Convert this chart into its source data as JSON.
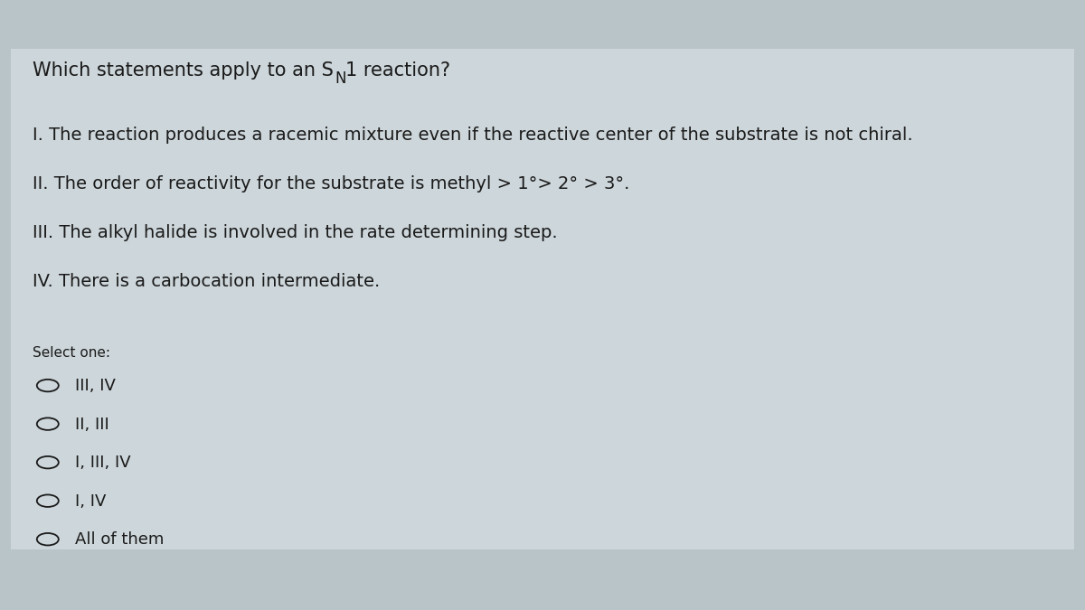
{
  "background_color": "#b8c4c8",
  "card_color": "#cdd6da",
  "text_color": "#1a1a1a",
  "font_size_title": 15,
  "font_size_statements": 14,
  "font_size_select": 11,
  "font_size_options": 13,
  "title_part1": "Which statements apply to an S",
  "title_sub": "N",
  "title_part2": "1 reaction?",
  "statements": [
    "I. The reaction produces a racemic mixture even if the reactive center of the substrate is not chiral.",
    "II. The order of reactivity for the substrate is methyl > 1°> 2° > 3°.",
    "III. The alkyl halide is involved in the rate determining step.",
    "IV. There is a carbocation intermediate."
  ],
  "select_label": "Select one:",
  "options": [
    "III, IV",
    "II, III",
    "I, III, IV",
    "I, IV",
    "All of them"
  ]
}
